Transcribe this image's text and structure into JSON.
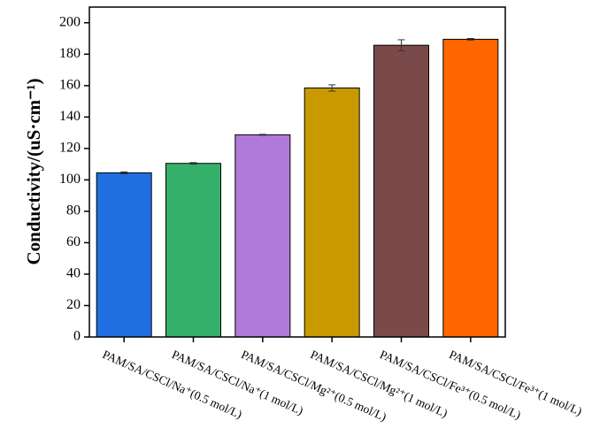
{
  "chart_data": {
    "type": "bar",
    "y_label": "Conductivity/(uS·cm⁻¹)",
    "categories": [
      "PAM/SA/CSCl/Na⁺(0.5 mol/L)",
      "PAM/SA/CSCl/Na⁺(1 mol/L)",
      "PAM/SA/CSCl/Mg²⁺(0.5 mol/L)",
      "PAM/SA/CSCl/Mg²⁺(1 mol/L)",
      "PAM/SA/CSCl/Fe³⁺(0.5 mol/L)",
      "PAM/SA/CSCl/Fe³⁺(1 mol/L)"
    ],
    "values": [
      104.5,
      110.5,
      128.7,
      158.5,
      185.7,
      189.5
    ],
    "errors": [
      0.6,
      0.5,
      0.3,
      2,
      3.5,
      0.5
    ],
    "colors": [
      "#1f6fe0",
      "#34b06a",
      "#b07ad8",
      "#c99a00",
      "#7a4a4a",
      "#ff6600"
    ],
    "ylim": [
      0,
      210
    ],
    "yticks": [
      0,
      20,
      40,
      60,
      80,
      100,
      120,
      140,
      160,
      180,
      200
    ]
  }
}
